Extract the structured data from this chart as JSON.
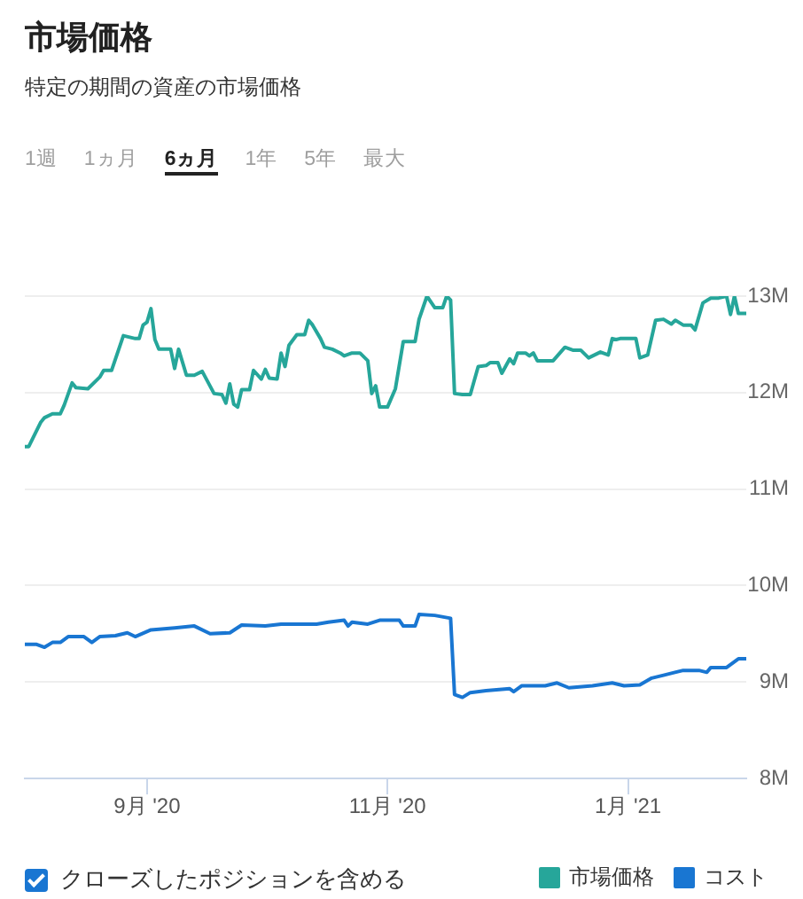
{
  "chart_data": {
    "type": "line",
    "title": "市場価格",
    "subtitle": "特定の期間の資産の市場価格",
    "annotations": [
      "1週",
      "1ヵ月",
      "6ヵ月",
      "1年",
      "5年",
      "最大",
      "クローズしたポジションを含める"
    ],
    "series": [
      {
        "name": "市場価格",
        "color": "#26a69a",
        "x": [
          "2020-08-01",
          "2020-08-02",
          "2020-08-05",
          "2020-08-06",
          "2020-08-08",
          "2020-08-10",
          "2020-08-11",
          "2020-08-13",
          "2020-08-14",
          "2020-08-17",
          "2020-08-20",
          "2020-08-21",
          "2020-08-23",
          "2020-08-26",
          "2020-08-29",
          "2020-08-30",
          "2020-08-31",
          "2020-09-01",
          "2020-09-02",
          "2020-09-03",
          "2020-09-04",
          "2020-09-07",
          "2020-09-08",
          "2020-09-09",
          "2020-09-11",
          "2020-09-13",
          "2020-09-15",
          "2020-09-18",
          "2020-09-20",
          "2020-09-21",
          "2020-09-22",
          "2020-09-23",
          "2020-09-24",
          "2020-09-25",
          "2020-09-27",
          "2020-09-28",
          "2020-09-30",
          "2020-10-01",
          "2020-10-02",
          "2020-10-04",
          "2020-10-05",
          "2020-10-06",
          "2020-10-07",
          "2020-10-09",
          "2020-10-11",
          "2020-10-12",
          "2020-10-13",
          "2020-10-15",
          "2020-10-16",
          "2020-10-18",
          "2020-10-20",
          "2020-10-21",
          "2020-10-23",
          "2020-10-25",
          "2020-10-27",
          "2020-10-28",
          "2020-10-29",
          "2020-10-30",
          "2020-11-01",
          "2020-11-03",
          "2020-11-05",
          "2020-11-08",
          "2020-11-09",
          "2020-11-11",
          "2020-11-13",
          "2020-11-15",
          "2020-11-16",
          "2020-11-17",
          "2020-11-18",
          "2020-11-20",
          "2020-11-22",
          "2020-11-24",
          "2020-11-26",
          "2020-11-27",
          "2020-11-29",
          "2020-11-30",
          "2020-12-02",
          "2020-12-03",
          "2020-12-04",
          "2020-12-06",
          "2020-12-07",
          "2020-12-08",
          "2020-12-09",
          "2020-12-13",
          "2020-12-16",
          "2020-12-18",
          "2020-12-20",
          "2020-12-22",
          "2020-12-25",
          "2020-12-27",
          "2020-12-28",
          "2020-12-29",
          "2020-12-30",
          "2021-01-03",
          "2021-01-04",
          "2021-01-06",
          "2021-01-08",
          "2021-01-10",
          "2021-01-12",
          "2021-01-13",
          "2021-01-15",
          "2021-01-17",
          "2021-01-18",
          "2021-01-20",
          "2021-01-22",
          "2021-01-24",
          "2021-01-26",
          "2021-01-27",
          "2021-01-28",
          "2021-01-29",
          "2021-01-31"
        ],
        "values": [
          11.44,
          11.44,
          11.69,
          11.74,
          11.78,
          11.78,
          11.87,
          12.1,
          12.05,
          12.04,
          12.16,
          12.23,
          12.23,
          12.59,
          12.56,
          12.56,
          12.7,
          12.73,
          12.87,
          12.55,
          12.45,
          12.45,
          12.25,
          12.45,
          12.18,
          12.18,
          12.22,
          11.99,
          11.98,
          11.89,
          12.09,
          11.88,
          11.85,
          12.03,
          12.03,
          12.23,
          12.14,
          12.24,
          12.15,
          12.14,
          12.41,
          12.27,
          12.49,
          12.6,
          12.6,
          12.75,
          12.7,
          12.56,
          12.47,
          12.45,
          12.41,
          12.38,
          12.41,
          12.41,
          12.33,
          11.99,
          12.07,
          11.85,
          11.85,
          12.04,
          12.53,
          12.53,
          12.76,
          13.0,
          12.88,
          12.88,
          13.0,
          12.96,
          11.99,
          11.98,
          11.98,
          12.27,
          12.28,
          12.31,
          12.31,
          12.2,
          12.35,
          12.3,
          12.41,
          12.41,
          12.38,
          12.41,
          12.33,
          12.33,
          12.47,
          12.44,
          12.44,
          12.36,
          12.42,
          12.39,
          12.56,
          12.55,
          12.56,
          12.56,
          12.36,
          12.39,
          12.75,
          12.76,
          12.71,
          12.75,
          12.7,
          12.7,
          12.65,
          12.93,
          12.98,
          12.98,
          13.0,
          12.81,
          13.0,
          12.82,
          12.82
        ]
      },
      {
        "name": "コスト",
        "color": "#1976d2",
        "x": [
          "2020-08-01",
          "2020-08-04",
          "2020-08-06",
          "2020-08-08",
          "2020-08-10",
          "2020-08-12",
          "2020-08-16",
          "2020-08-18",
          "2020-08-20",
          "2020-08-24",
          "2020-08-27",
          "2020-08-29",
          "2020-09-02",
          "2020-09-08",
          "2020-09-13",
          "2020-09-17",
          "2020-09-22",
          "2020-09-25",
          "2020-10-01",
          "2020-10-05",
          "2020-10-14",
          "2020-10-17",
          "2020-10-21",
          "2020-10-22",
          "2020-10-23",
          "2020-10-27",
          "2020-10-30",
          "2020-11-04",
          "2020-11-05",
          "2020-11-08",
          "2020-11-09",
          "2020-11-13",
          "2020-11-17",
          "2020-11-18",
          "2020-11-20",
          "2020-11-22",
          "2020-11-26",
          "2020-12-02",
          "2020-12-03",
          "2020-12-05",
          "2020-12-11",
          "2020-12-14",
          "2020-12-17",
          "2020-12-23",
          "2020-12-28",
          "2020-12-31",
          "2021-01-04",
          "2021-01-07",
          "2021-01-10",
          "2021-01-15",
          "2021-01-19",
          "2021-01-21",
          "2021-01-22",
          "2021-01-26",
          "2021-01-29",
          "2021-01-31"
        ],
        "values": [
          9.39,
          9.39,
          9.36,
          9.41,
          9.41,
          9.47,
          9.47,
          9.41,
          9.47,
          9.48,
          9.51,
          9.47,
          9.54,
          9.56,
          9.58,
          9.5,
          9.51,
          9.59,
          9.58,
          9.6,
          9.6,
          9.62,
          9.64,
          9.58,
          9.62,
          9.6,
          9.64,
          9.64,
          9.58,
          9.58,
          9.7,
          9.69,
          9.66,
          8.87,
          8.84,
          8.89,
          8.91,
          8.93,
          8.9,
          8.96,
          8.96,
          8.99,
          8.94,
          8.96,
          8.99,
          8.96,
          8.97,
          9.04,
          9.07,
          9.12,
          9.12,
          9.1,
          9.15,
          9.15,
          9.24,
          9.24
        ]
      }
    ],
    "xlim": [
      "2020-08-01",
      "2021-01-31"
    ],
    "xticks": [
      {
        "value": "2020-09-01",
        "label": "9月 '20"
      },
      {
        "value": "2020-11-01",
        "label": "11月 '20"
      },
      {
        "value": "2021-01-01",
        "label": "1月 '21"
      }
    ],
    "ylim": [
      8,
      13
    ],
    "yticks": [
      {
        "value": 8,
        "label": "8M"
      },
      {
        "value": 9,
        "label": "9M"
      },
      {
        "value": 10,
        "label": "10M"
      },
      {
        "value": 11,
        "label": "11M"
      },
      {
        "value": 12,
        "label": "12M"
      },
      {
        "value": 13,
        "label": "13M"
      }
    ],
    "grid": "y",
    "legend": "bottom right",
    "marker": "none",
    "line_style": "solid"
  }
}
